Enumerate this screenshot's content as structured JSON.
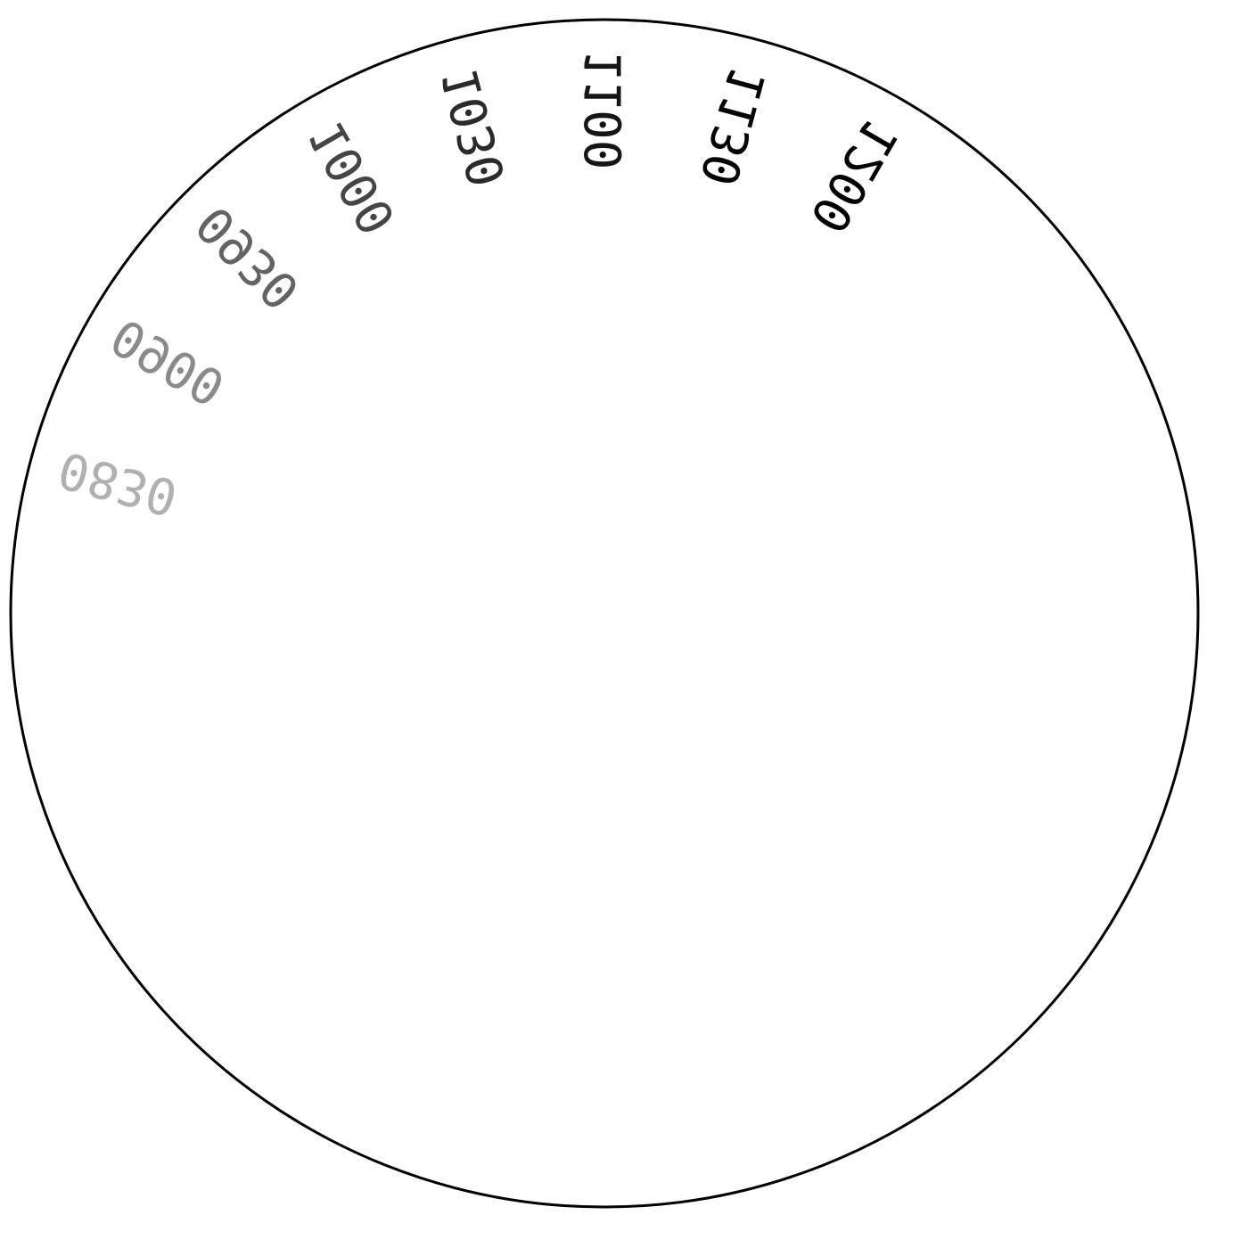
{
  "dial": {
    "stroke_color": "#000000",
    "labels": [
      {
        "text": "0830",
        "color": "#b0b0b0"
      },
      {
        "text": "0900",
        "color": "#8a8a8a"
      },
      {
        "text": "0930",
        "color": "#636363"
      },
      {
        "text": "1000",
        "color": "#454545"
      },
      {
        "text": "1030",
        "color": "#2a2a2a"
      },
      {
        "text": "1100",
        "color": "#151515"
      },
      {
        "text": "1130",
        "color": "#050505"
      },
      {
        "text": "1200",
        "color": "#000000"
      }
    ]
  }
}
